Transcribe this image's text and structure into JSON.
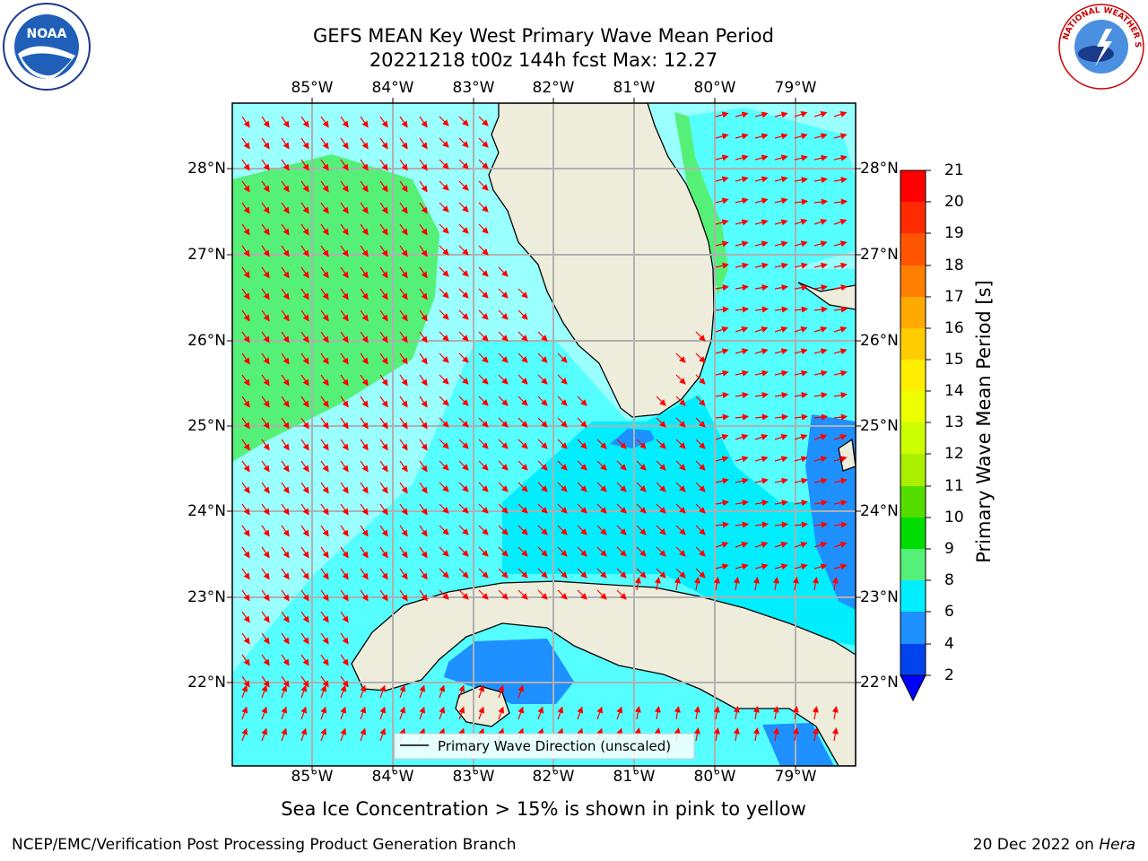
{
  "title": {
    "line1": "GEFS MEAN Key West Primary Wave Mean Period",
    "line2": "20221218 t00z 144h fcst   Max: 12.27"
  },
  "lon_labels": [
    "85°W",
    "84°W",
    "83°W",
    "82°W",
    "81°W",
    "80°W",
    "79°W"
  ],
  "lat_labels": [
    "28°N",
    "27°N",
    "26°N",
    "25°N",
    "24°N",
    "23°N",
    "22°N"
  ],
  "legend": {
    "text": "Primary Wave Direction (unscaled)"
  },
  "colorbar": {
    "label": "Primary Wave Mean Period [s]",
    "ticks": [
      "21",
      "20",
      "19",
      "18",
      "17",
      "16",
      "15",
      "14",
      "13",
      "12",
      "11",
      "10",
      "9",
      "8",
      "6",
      "4",
      "2"
    ],
    "colors": [
      "#ff0000",
      "#ff2a00",
      "#ff5500",
      "#ff7f00",
      "#ffaa00",
      "#ffcc00",
      "#ffee00",
      "#eeff00",
      "#ccff00",
      "#aaee00",
      "#55dd00",
      "#00dd00",
      "#55f077",
      "#99ffee",
      "#55ffff",
      "#00eeff",
      "#1e90ff",
      "#0044ee"
    ],
    "extend_color": "#0000ff"
  },
  "map": {
    "land_color": "#eeeddc",
    "ocean_color": "#99ffff",
    "arrow_color": "#ff0000",
    "grid_color": "#b0b0b0"
  },
  "footer": {
    "seaice_note": "Sea Ice Concentration > 15% is shown in pink to yellow",
    "producer": "NCEP/EMC/Verification Post Processing Product Generation Branch",
    "date_prefix": "20 Dec 2022 on ",
    "machine": "Hera"
  },
  "logos": {
    "noaa_text": "NOAA",
    "nws_text": "NATIONAL WEATHER SERVICE"
  }
}
